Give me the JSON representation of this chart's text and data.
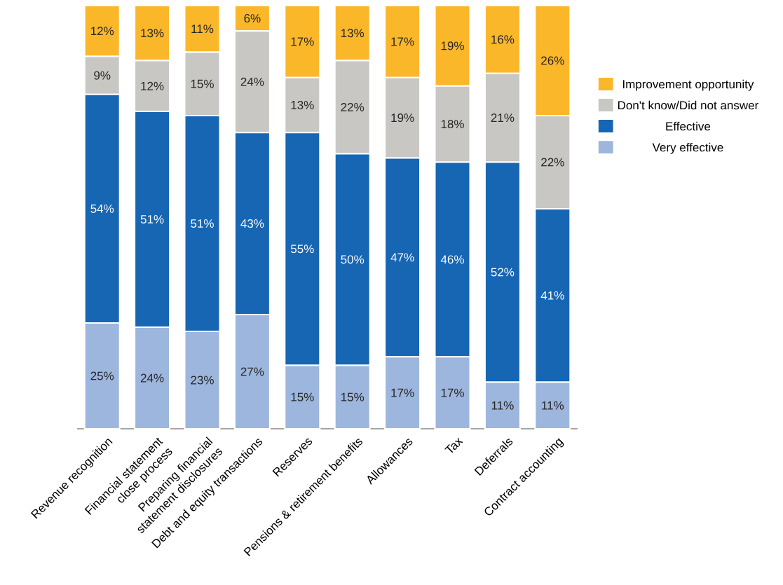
{
  "chart_data": {
    "type": "bar",
    "stacked": true,
    "legend": "right",
    "ylim": [
      0,
      100
    ],
    "categories": [
      "Revenue recognition",
      "Financial statement close process",
      "Preparing financial statement disclosures",
      "Debt and equity transactions",
      "Reserves",
      "Pensions & retirement benefits",
      "Allowances",
      "Tax",
      "Deferrals",
      "Contract accounting"
    ],
    "series": [
      {
        "name": "Very effective",
        "color": "#9db6dd",
        "values": [
          25,
          24,
          23,
          27,
          15,
          15,
          17,
          17,
          11,
          11
        ],
        "value_labels": [
          "25%",
          "24%",
          "23%",
          "27%",
          "15%",
          "15%",
          "17%",
          "17%",
          "11%",
          "11%"
        ]
      },
      {
        "name": "Effective",
        "color": "#1666b3",
        "values": [
          54,
          51,
          51,
          43,
          55,
          50,
          47,
          46,
          52,
          41
        ],
        "value_labels": [
          "54%",
          "51%",
          "51%",
          "43%",
          "55%",
          "50%",
          "47%",
          "46%",
          "52%",
          "41%"
        ]
      },
      {
        "name": "Don't know/Did not answer",
        "color": "#c8c7c3",
        "values": [
          9,
          12,
          15,
          24,
          13,
          22,
          19,
          18,
          21,
          22
        ],
        "value_labels": [
          "9%",
          "12%",
          "15%",
          "24%",
          "13%",
          "22%",
          "19%",
          "18%",
          "21%",
          "22%"
        ]
      },
      {
        "name": "Improvement opportunity",
        "color": "#fbb72a",
        "values": [
          12,
          13,
          11,
          6,
          17,
          13,
          17,
          19,
          16,
          26
        ],
        "value_labels": [
          "12%",
          "13%",
          "11%",
          "6%",
          "17%",
          "13%",
          "17%",
          "19%",
          "16%",
          "26%"
        ]
      }
    ]
  }
}
